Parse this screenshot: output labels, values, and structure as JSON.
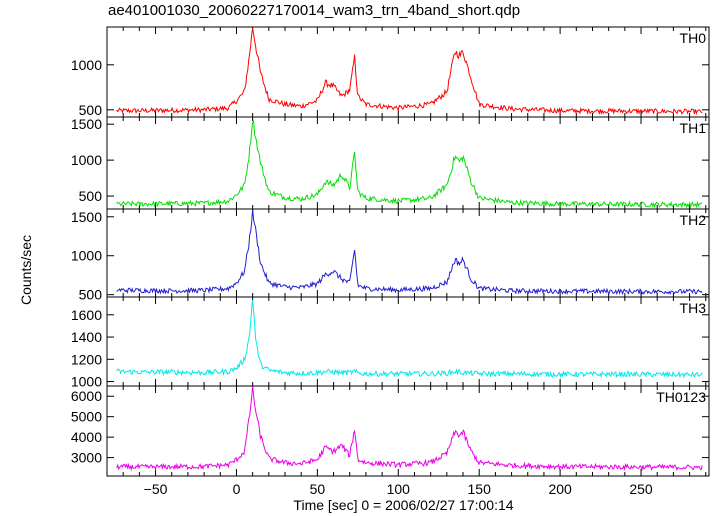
{
  "chart_data": {
    "title": "ae401001030_20060227170014_wam3_trn_4band_short.qdp",
    "xlabel": "Time [sec] 0 = 2006/02/27 17:00:14",
    "ylabel": "Counts/sec",
    "type": "line",
    "xlim": [
      -80,
      292
    ],
    "x_ticks": [
      -50,
      0,
      50,
      100,
      150,
      200,
      250
    ],
    "x_tick_labels": [
      "−50",
      "0",
      "50",
      "100",
      "150",
      "200",
      "250"
    ],
    "grid": false,
    "panels": [
      {
        "name": "TH0",
        "color": "#ff0000",
        "ylim": [
          420,
          1420
        ],
        "y_ticks": [
          500,
          1000
        ],
        "y_tick_labels": [
          "500",
          "1000"
        ],
        "series": {
          "name": "TH0",
          "x": [
            -74,
            -60,
            -40,
            -20,
            -5,
            0,
            5,
            8,
            10,
            12,
            15,
            20,
            30,
            40,
            50,
            55,
            60,
            65,
            70,
            73,
            75,
            80,
            100,
            120,
            130,
            135,
            138,
            140,
            145,
            150,
            170,
            200,
            250,
            288
          ],
          "y": [
            490,
            490,
            495,
            500,
            520,
            600,
            700,
            1100,
            1420,
            1200,
            900,
            620,
            560,
            540,
            600,
            800,
            760,
            650,
            720,
            1080,
            650,
            560,
            520,
            560,
            700,
            1150,
            1100,
            1150,
            850,
            560,
            510,
            490,
            485,
            480
          ]
        }
      },
      {
        "name": "TH1",
        "color": "#00e000",
        "ylim": [
          320,
          1600
        ],
        "y_ticks": [
          500,
          1000,
          1500
        ],
        "y_tick_labels": [
          "500",
          "1000",
          "1500"
        ],
        "series": {
          "name": "TH1",
          "x": [
            -74,
            -60,
            -40,
            -20,
            -5,
            0,
            5,
            8,
            10,
            12,
            15,
            20,
            30,
            40,
            50,
            55,
            60,
            65,
            70,
            73,
            75,
            80,
            100,
            120,
            130,
            135,
            138,
            140,
            145,
            150,
            170,
            200,
            250,
            288
          ],
          "y": [
            390,
            390,
            395,
            400,
            430,
            520,
            650,
            1100,
            1580,
            1300,
            950,
            560,
            480,
            460,
            520,
            700,
            650,
            800,
            620,
            1100,
            560,
            470,
            430,
            470,
            650,
            1050,
            980,
            1050,
            700,
            470,
            410,
            390,
            385,
            380
          ]
        }
      },
      {
        "name": "TH2",
        "color": "#2020d0",
        "ylim": [
          470,
          1600
        ],
        "y_ticks": [
          500,
          1000,
          1500
        ],
        "y_tick_labels": [
          "500",
          "1000",
          "1500"
        ],
        "series": {
          "name": "TH2",
          "x": [
            -74,
            -60,
            -40,
            -20,
            -5,
            0,
            5,
            8,
            10,
            12,
            15,
            20,
            30,
            40,
            50,
            55,
            60,
            65,
            70,
            73,
            75,
            80,
            100,
            120,
            130,
            135,
            138,
            140,
            145,
            150,
            170,
            200,
            250,
            288
          ],
          "y": [
            560,
            555,
            550,
            555,
            580,
            650,
            800,
            1200,
            1580,
            1300,
            900,
            650,
            600,
            590,
            640,
            760,
            800,
            700,
            650,
            1080,
            620,
            580,
            560,
            580,
            660,
            950,
            900,
            950,
            700,
            580,
            550,
            545,
            540,
            540
          ]
        }
      },
      {
        "name": "TH3",
        "color": "#00e8e8",
        "ylim": [
          960,
          1760
        ],
        "y_ticks": [
          1000,
          1200,
          1400,
          1600
        ],
        "y_tick_labels": [
          "1000",
          "1200",
          "1400",
          "1600"
        ],
        "series": {
          "name": "TH3",
          "x": [
            -74,
            -60,
            -40,
            -20,
            -5,
            0,
            5,
            8,
            10,
            12,
            15,
            20,
            30,
            40,
            50,
            55,
            60,
            65,
            70,
            73,
            75,
            80,
            100,
            120,
            130,
            135,
            138,
            140,
            145,
            150,
            170,
            200,
            250,
            288
          ],
          "y": [
            1090,
            1085,
            1085,
            1080,
            1090,
            1120,
            1200,
            1400,
            1760,
            1350,
            1150,
            1100,
            1080,
            1075,
            1080,
            1090,
            1085,
            1080,
            1080,
            1090,
            1075,
            1070,
            1070,
            1070,
            1075,
            1090,
            1085,
            1080,
            1075,
            1070,
            1070,
            1065,
            1065,
            1060
          ]
        }
      },
      {
        "name": "TH0123",
        "color": "#e800e8",
        "ylim": [
          2100,
          6500
        ],
        "y_ticks": [
          3000,
          4000,
          5000,
          6000
        ],
        "y_tick_labels": [
          "3000",
          "4000",
          "5000",
          "6000"
        ],
        "series": {
          "name": "TH0123",
          "x": [
            -74,
            -60,
            -40,
            -20,
            -5,
            0,
            5,
            8,
            10,
            12,
            15,
            20,
            30,
            40,
            50,
            55,
            60,
            65,
            70,
            73,
            75,
            80,
            100,
            120,
            130,
            135,
            138,
            140,
            145,
            150,
            170,
            200,
            250,
            288
          ],
          "y": [
            2550,
            2540,
            2550,
            2560,
            2650,
            2900,
            3300,
            5000,
            6400,
            5200,
            4000,
            2950,
            2750,
            2700,
            2900,
            3500,
            3300,
            3600,
            3100,
            4400,
            2900,
            2750,
            2650,
            2750,
            3200,
            4250,
            4100,
            4250,
            3300,
            2750,
            2620,
            2560,
            2540,
            2520
          ]
        }
      }
    ]
  }
}
